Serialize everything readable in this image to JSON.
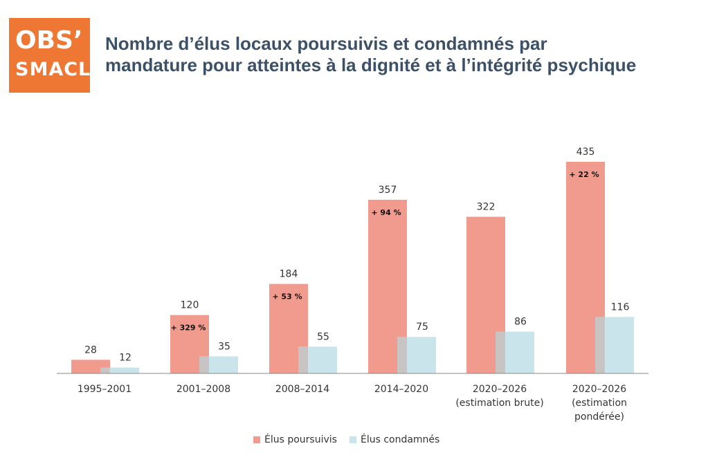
{
  "logo": {
    "line1": "OBS’",
    "line2": "SMACL"
  },
  "title": {
    "line1": "Nombre d’élus locaux poursuivis et condamnés par",
    "line2": "mandature pour atteintes à la dignité et à l’intégrité psychique"
  },
  "colors": {
    "poursuivis": "#f19b8e",
    "condamnes": "#c9e4ea",
    "overlap": "#c8c4c4",
    "accent": "#ee7733",
    "title": "#3c5068"
  },
  "chart_data": {
    "type": "bar",
    "title": "Nombre d’élus locaux poursuivis et condamnés par mandature pour atteintes à la dignité et à l’intégrité psychique",
    "categories": [
      [
        "1995–2001"
      ],
      [
        "2001–2008"
      ],
      [
        "2008–2014"
      ],
      [
        "2014–2020"
      ],
      [
        "2020–2026",
        "(estimation brute)"
      ],
      [
        "2020–2026",
        "(estimation",
        "pondérée)"
      ]
    ],
    "series": [
      {
        "name": "Élus poursuivis",
        "values": [
          28,
          120,
          184,
          357,
          322,
          435
        ]
      },
      {
        "name": "Élus condamnés",
        "values": [
          12,
          35,
          55,
          75,
          86,
          116
        ]
      }
    ],
    "growth_labels": [
      "",
      "+ 329 %",
      "+ 53 %",
      "+ 94 %",
      "",
      "+ 22 %"
    ],
    "ylim": [
      0,
      435
    ],
    "legend": "bottom",
    "grid": false
  }
}
